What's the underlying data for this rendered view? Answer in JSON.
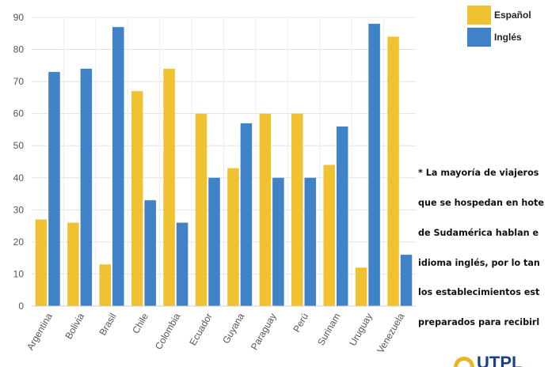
{
  "colors": {
    "series_0": "#F0C130",
    "series_1": "#3F82C8",
    "grid": "#e3e3e3",
    "axis_text": "#555555"
  },
  "legend": {
    "items": [
      {
        "label": "Español",
        "color": "#F0C130"
      },
      {
        "label": "Inglés",
        "color": "#3F82C8"
      }
    ],
    "placement": "top-right"
  },
  "note": {
    "lines": [
      "* La mayoría de viajeros",
      "que se hospedan en hote",
      "de Sudamérica hablan e",
      "idioma inglés, por lo tan",
      "los establecimientos est",
      "preparados para recibirl"
    ]
  },
  "logo": {
    "text": "UTPL"
  },
  "chart_data": {
    "type": "bar",
    "title": "",
    "xlabel": "",
    "ylabel": "",
    "ylim": [
      0,
      90
    ],
    "yticks": [
      0,
      10,
      20,
      30,
      40,
      50,
      60,
      70,
      80,
      90
    ],
    "grid": true,
    "legend_placement": "top-right",
    "categories": [
      "Argentina",
      "Bolivia",
      "Brasil",
      "Chile",
      "Colombia",
      "Ecuador",
      "Guyana",
      "Paraguay",
      "Perú",
      "Surinam",
      "Uruguay",
      "Venezuela"
    ],
    "series": [
      {
        "name": "Español",
        "values": [
          27,
          26,
          13,
          67,
          74,
          60,
          43,
          60,
          60,
          44,
          12,
          84
        ]
      },
      {
        "name": "Inglés",
        "values": [
          73,
          74,
          87,
          33,
          26,
          40,
          57,
          40,
          40,
          56,
          88,
          16
        ]
      }
    ]
  }
}
